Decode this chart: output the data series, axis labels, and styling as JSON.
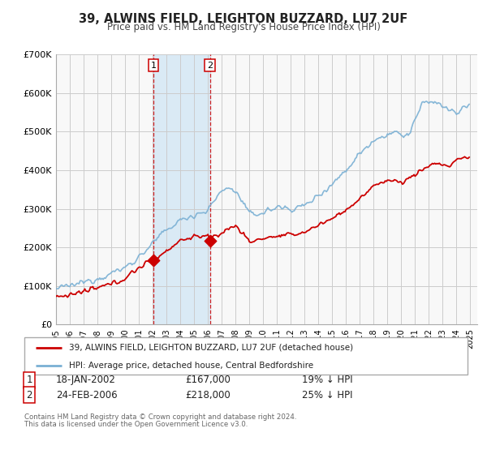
{
  "title": "39, ALWINS FIELD, LEIGHTON BUZZARD, LU7 2UF",
  "subtitle": "Price paid vs. HM Land Registry's House Price Index (HPI)",
  "ylim": [
    0,
    700000
  ],
  "yticks": [
    0,
    100000,
    200000,
    300000,
    400000,
    500000,
    600000,
    700000
  ],
  "ytick_labels": [
    "£0",
    "£100K",
    "£200K",
    "£300K",
    "£400K",
    "£500K",
    "£600K",
    "£700K"
  ],
  "xlim_start": 1995.0,
  "xlim_end": 2025.5,
  "red_line_color": "#cc0000",
  "blue_line_color": "#7ab0d4",
  "shade_color": "#daeaf5",
  "grid_color": "#cccccc",
  "marker1_date": 2002.05,
  "marker1_value": 167000,
  "marker2_date": 2006.15,
  "marker2_value": 218000,
  "marker1_date_str": "18-JAN-2002",
  "marker1_price": "£167,000",
  "marker1_hpi": "19% ↓ HPI",
  "marker2_date_str": "24-FEB-2006",
  "marker2_price": "£218,000",
  "marker2_hpi": "25% ↓ HPI",
  "legend_line1": "39, ALWINS FIELD, LEIGHTON BUZZARD, LU7 2UF (detached house)",
  "legend_line2": "HPI: Average price, detached house, Central Bedfordshire",
  "footnote1": "Contains HM Land Registry data © Crown copyright and database right 2024.",
  "footnote2": "This data is licensed under the Open Government Licence v3.0.",
  "background_color": "#ffffff",
  "plot_bg_color": "#f8f8f8"
}
